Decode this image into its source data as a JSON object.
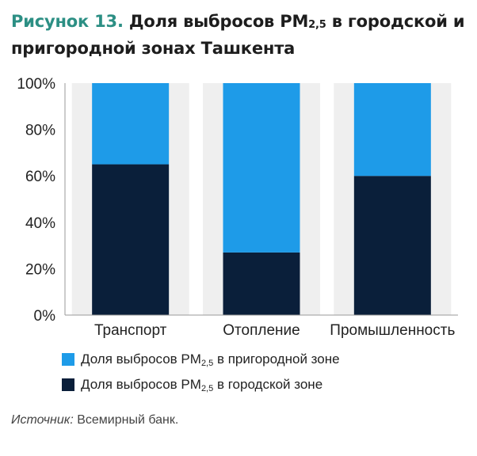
{
  "title": {
    "figure_label": "Рисунок 13.",
    "text_before_sub": "Доля выбросов PM",
    "subscript": "2,5",
    "text_after_sub": " в городской и пригородной зонах Ташкента"
  },
  "chart_data": {
    "type": "bar",
    "stacked": true,
    "percent": true,
    "categories": [
      "Транспорт",
      "Отопление",
      "Промышленность"
    ],
    "series": [
      {
        "name": "Доля выбросов PM2,5 в городской зоне",
        "values": [
          65,
          27,
          60
        ]
      },
      {
        "name": "Доля выбросов PM2,5 в пригородной зоне",
        "values": [
          35,
          73,
          40
        ]
      }
    ],
    "colors": {
      "urban": "#0a1f3a",
      "suburban": "#1e9be8",
      "background_band": "#efefef"
    },
    "ylim": [
      0,
      100
    ],
    "yticks": [
      "0%",
      "20%",
      "40%",
      "60%",
      "80%",
      "100%"
    ],
    "ytick_values": [
      0,
      20,
      40,
      60,
      80,
      100
    ],
    "grid": false,
    "legend_position": "bottom"
  },
  "legend": {
    "suburban": {
      "before": "Доля выбросов PM",
      "sub": "2,5",
      "after": " в пригородной зоне"
    },
    "urban": {
      "before": "Доля выбросов PM",
      "sub": "2,5",
      "after": " в городской зоне"
    }
  },
  "source": {
    "label": "Источник:",
    "text": " Всемирный банк."
  }
}
